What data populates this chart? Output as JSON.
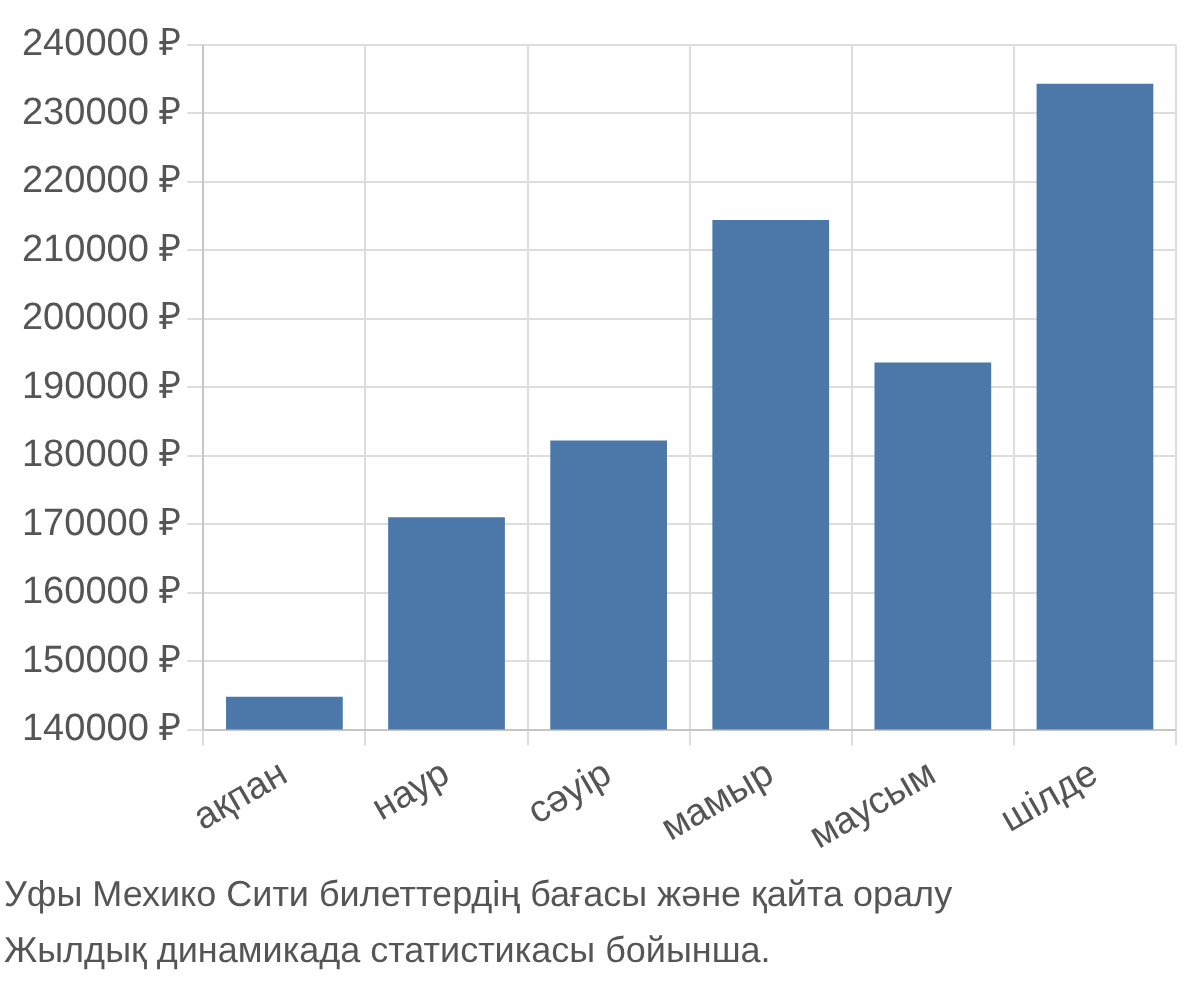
{
  "chart_data": {
    "type": "bar",
    "categories": [
      "ақпан",
      "наур",
      "сәуір",
      "мамыр",
      "маусым",
      "шілде"
    ],
    "values": [
      144800,
      171000,
      182200,
      214400,
      193600,
      234300
    ],
    "color": "#4b78a8",
    "ylim": [
      140000,
      240000
    ],
    "yticks": [
      {
        "value": 140000,
        "label": "140000 ₽"
      },
      {
        "value": 150000,
        "label": "150000 ₽"
      },
      {
        "value": 160000,
        "label": "160000 ₽"
      },
      {
        "value": 170000,
        "label": "170000 ₽"
      },
      {
        "value": 180000,
        "label": "180000 ₽"
      },
      {
        "value": 190000,
        "label": "190000 ₽"
      },
      {
        "value": 200000,
        "label": "200000 ₽"
      },
      {
        "value": 210000,
        "label": "210000 ₽"
      },
      {
        "value": 220000,
        "label": "220000 ₽"
      },
      {
        "value": 230000,
        "label": "230000 ₽"
      },
      {
        "value": 240000,
        "label": "240000 ₽"
      }
    ],
    "grid": true,
    "annotations": [
      "Уфы Мехико Сити билеттердің бағасы және қайта оралу",
      "Жылдық динамикада статистикасы бойынша."
    ]
  }
}
